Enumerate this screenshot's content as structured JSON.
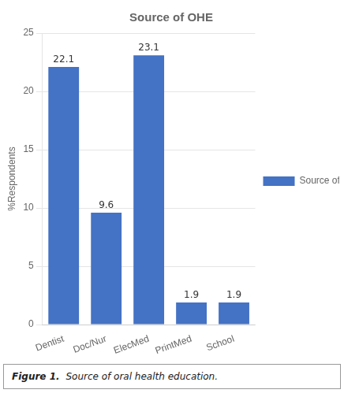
{
  "chart_data": {
    "type": "bar",
    "title": "Source of OHE",
    "categories": [
      "Dentist",
      "Doc/Nur",
      "ElecMed",
      "PrintMed",
      "School"
    ],
    "values": [
      22.1,
      9.6,
      23.1,
      1.9,
      1.9
    ],
    "series_name": "Source of OHE",
    "color": "#4472C4",
    "ylabel": "%Respondents",
    "ylim": [
      0,
      25
    ],
    "yticks": [
      0,
      5,
      10,
      15,
      20,
      25
    ],
    "grid": true,
    "data_labels": true,
    "legend": "right",
    "annotations": [
      "Figure 1.",
      "Source of oral health education."
    ]
  }
}
